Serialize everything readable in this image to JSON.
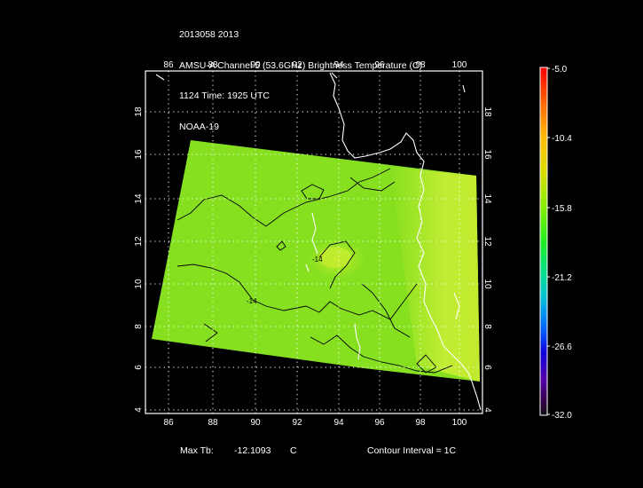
{
  "header": {
    "line1": "2013058 2013",
    "line2": "AMSU-A Channel 5 (53.6GHz) Brightness Temperature (C)",
    "line3": "1124 Time: 1925 UTC",
    "line4": "NOAA-19"
  },
  "map": {
    "lon_ticks": [
      "86",
      "88",
      "90",
      "92",
      "94",
      "96",
      "98",
      "100"
    ],
    "lat_ticks": [
      "4",
      "6",
      "8",
      "10",
      "12",
      "14",
      "16",
      "18"
    ],
    "contour_labels": [
      "-14",
      "-14"
    ],
    "swath_color": "#86e020",
    "frame_color": "#ffffff",
    "grid_style": "dotted"
  },
  "colorbar": {
    "labels": [
      "-5.0",
      "-10.4",
      "-15.8",
      "-21.2",
      "-26.6",
      "-32.0"
    ],
    "colors": [
      "#ff0000",
      "#ff9900",
      "#e6e600",
      "#66ff00",
      "#00cc66",
      "#00cccc",
      "#0044ff",
      "#2200cc",
      "#660099",
      "#222222"
    ]
  },
  "footer": {
    "max_label": "Max Tb:",
    "max_value": "-12.1093",
    "max_unit": "C",
    "contour": "Contour Interval = 1C"
  }
}
